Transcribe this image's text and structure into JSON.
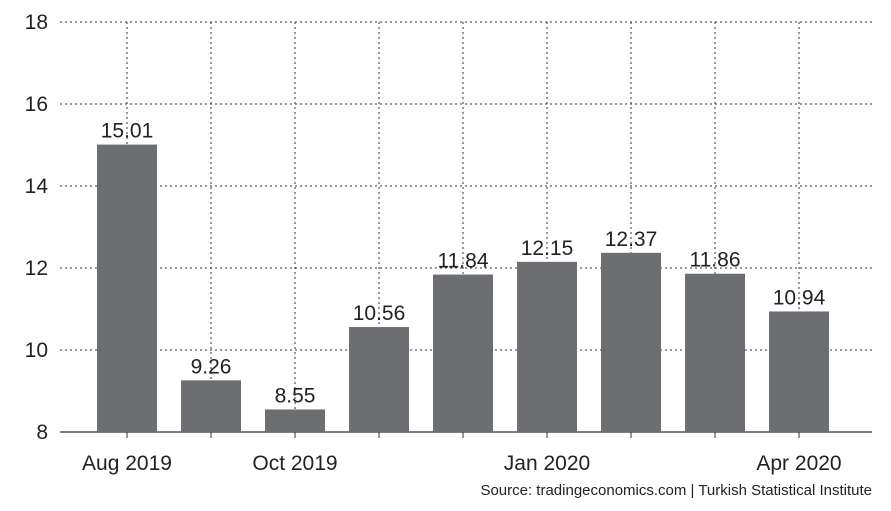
{
  "chart_data": {
    "type": "bar",
    "categories": [
      "Aug 2019",
      "Sep 2019",
      "Oct 2019",
      "Nov 2019",
      "Dec 2019",
      "Jan 2020",
      "Feb 2020",
      "Mar 2020",
      "Apr 2020"
    ],
    "values": [
      15.01,
      9.26,
      8.55,
      10.56,
      11.84,
      12.15,
      12.37,
      11.86,
      10.94
    ],
    "value_labels": [
      "15.01",
      "9.26",
      "8.55",
      "10.56",
      "11.84",
      "12.15",
      "12.37",
      "11.86",
      "10.94"
    ],
    "x_tick_labels": [
      {
        "category": "Aug 2019",
        "label": "Aug 2019"
      },
      {
        "category": "Oct 2019",
        "label": "Oct 2019"
      },
      {
        "category": "Jan 2020",
        "label": "Jan 2020"
      },
      {
        "category": "Apr 2020",
        "label": "Apr 2020"
      }
    ],
    "y_ticks": [
      8,
      10,
      12,
      14,
      16,
      18
    ],
    "ylim": [
      8,
      18
    ],
    "grid": true,
    "grid_style": "dotted",
    "bar_color": "#6d6e71",
    "source": "Source: tradingeconomics.com | Turkish Statistical Institute"
  }
}
